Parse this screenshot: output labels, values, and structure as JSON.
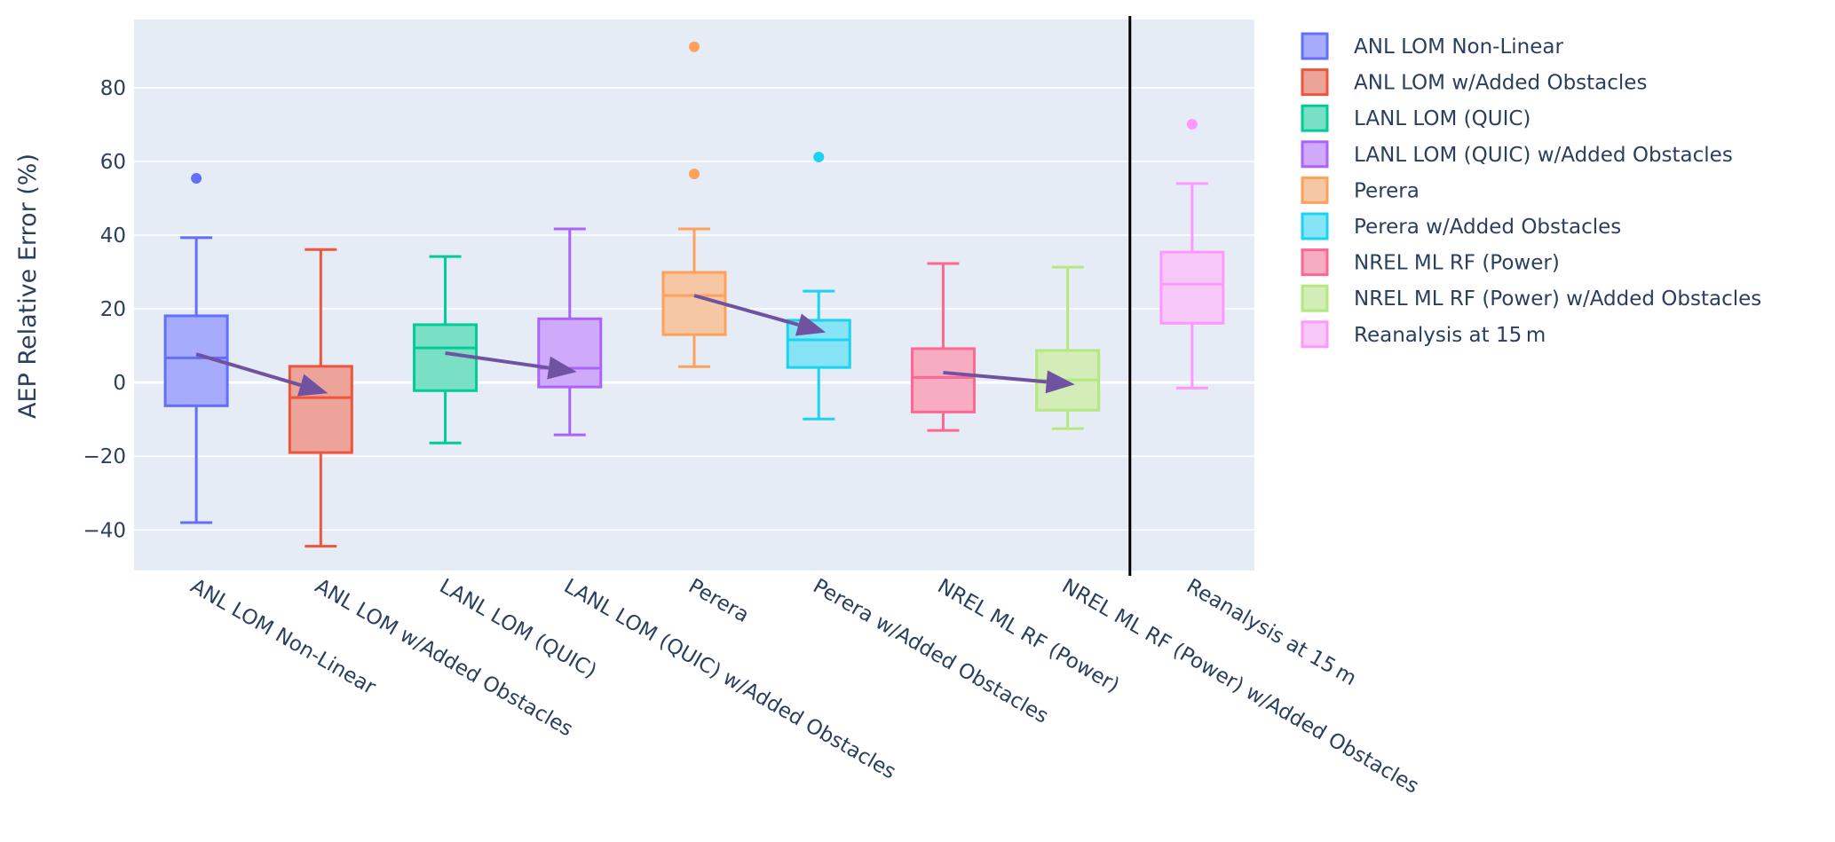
{
  "chart_data": {
    "type": "box",
    "title": "",
    "xlabel": "",
    "ylabel": "AEP Relative Error (%)",
    "ylim": [
      -51,
      98.5
    ],
    "yticks": [
      -40,
      -20,
      0,
      20,
      40,
      60,
      80
    ],
    "ytick_labels": [
      "−40",
      "−20",
      "0",
      "20",
      "40",
      "60",
      "80"
    ],
    "grid": true,
    "legend_position": "right",
    "categories": [
      "ANL LOM Non-Linear",
      "ANL LOM w/Added Obstacles",
      "LANL LOM (QUIC)",
      "LANL LOM (QUIC) w/Added Obstacles",
      "Perera",
      "Perera w/Added Obstacles",
      "NREL ML RF (Power)",
      "NREL ML RF (Power) w/Added Obstacles",
      "Reanalysis at 15 m"
    ],
    "series": [
      {
        "name": "ANL LOM Non-Linear",
        "color": "#636efa",
        "fill": "#a6acfb",
        "lower_whisker": -38,
        "q1": -6.3,
        "median": 6.7,
        "q3": 18.1,
        "upper_whisker": 39.3,
        "outliers": [
          55.4
        ]
      },
      {
        "name": "ANL LOM w/Added Obstacles",
        "color": "#ef553b",
        "fill": "#eca49a",
        "lower_whisker": -44.4,
        "q1": -19,
        "median": -4.1,
        "q3": 4.4,
        "upper_whisker": 36.1,
        "outliers": []
      },
      {
        "name": "LANL LOM (QUIC)",
        "color": "#00cc96",
        "fill": "#79e0c5",
        "lower_whisker": -16.4,
        "q1": -2.2,
        "median": 9.4,
        "q3": 15.7,
        "upper_whisker": 34.2,
        "outliers": []
      },
      {
        "name": "LANL LOM (QUIC) w/Added Obstacles",
        "color": "#ab63fa",
        "fill": "#cfaafb",
        "lower_whisker": -14.2,
        "q1": -1.2,
        "median": 3.9,
        "q3": 17.3,
        "upper_whisker": 41.7,
        "outliers": []
      },
      {
        "name": "Perera",
        "color": "#ffa15a",
        "fill": "#f6c7a4",
        "lower_whisker": 4.3,
        "q1": 13,
        "median": 23.6,
        "q3": 29.9,
        "upper_whisker": 41.7,
        "outliers": [
          56.6,
          91.1
        ]
      },
      {
        "name": "Perera w/Added Obstacles",
        "color": "#19d3f3",
        "fill": "#86e4f6",
        "lower_whisker": -9.9,
        "q1": 4.1,
        "median": 11.6,
        "q3": 16.9,
        "upper_whisker": 24.8,
        "outliers": [
          61.2
        ]
      },
      {
        "name": "NREL ML RF (Power)",
        "color": "#ff6692",
        "fill": "#f6adc2",
        "lower_whisker": -13,
        "q1": -8,
        "median": 1.4,
        "q3": 9.2,
        "upper_whisker": 32.3,
        "outliers": []
      },
      {
        "name": "NREL ML RF (Power) w/Added Obstacles",
        "color": "#b6e880",
        "fill": "#d3ecb8",
        "lower_whisker": -12.5,
        "q1": -7.5,
        "median": 0.7,
        "q3": 8.7,
        "upper_whisker": 31.3,
        "outliers": []
      },
      {
        "name": "Reanalysis at 15 m",
        "color": "#ff97ff",
        "fill": "#f6c9f8",
        "lower_whisker": -1.5,
        "q1": 16.1,
        "median": 26.7,
        "q3": 35.4,
        "upper_whisker": 54,
        "outliers": [
          70.1
        ]
      }
    ],
    "annotations": {
      "arrows": [
        {
          "from_category": 0,
          "from_value": 7.7,
          "to_category": 1,
          "to_value": -2.9
        },
        {
          "from_category": 2,
          "from_value": 8.0,
          "to_category": 3,
          "to_value": 2.9
        },
        {
          "from_category": 4,
          "from_value": 23.6,
          "to_category": 5,
          "to_value": 13.6
        },
        {
          "from_category": 6,
          "from_value": 2.7,
          "to_category": 7,
          "to_value": -0.5
        }
      ],
      "arrow_color": "#6f52a0",
      "divider_after_category": 7,
      "divider_color": "#000000"
    },
    "plot_bg": "#e5ecf6",
    "grid_color": "#ffffff",
    "text_color": "#2a3f5f"
  }
}
